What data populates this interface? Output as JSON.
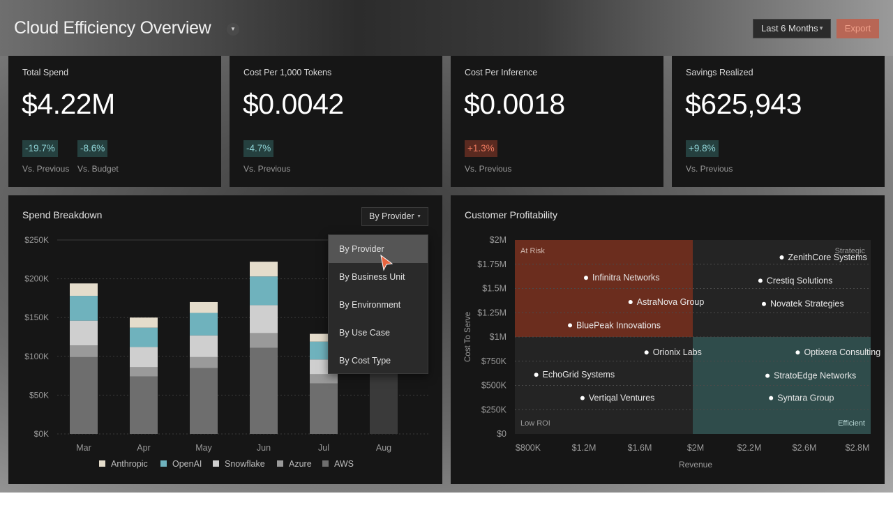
{
  "header": {
    "title": "Cloud Efficiency Overview",
    "range_label": "Last 6 Months",
    "export_label": "Export"
  },
  "kpis": [
    {
      "label": "Total Spend",
      "value": "$4.22M",
      "badges": [
        {
          "text": "-19.7%",
          "status": "good",
          "caption": "Vs. Previous"
        },
        {
          "text": "-8.6%",
          "status": "good",
          "caption": "Vs. Budget"
        }
      ]
    },
    {
      "label": "Cost Per 1,000 Tokens",
      "value": "$0.0042",
      "badges": [
        {
          "text": "-4.7%",
          "status": "good",
          "caption": "Vs. Previous"
        }
      ]
    },
    {
      "label": "Cost Per Inference",
      "value": "$0.0018",
      "badges": [
        {
          "text": "+1.3%",
          "status": "bad",
          "caption": "Vs. Previous"
        }
      ]
    },
    {
      "label": "Savings Realized",
      "value": "$625,943",
      "badges": [
        {
          "text": "+9.8%",
          "status": "good",
          "caption": "Vs. Previous"
        }
      ]
    }
  ],
  "spend": {
    "title": "Spend Breakdown",
    "selector_label": "By Provider",
    "dropdown_options": [
      "By Provider",
      "By Business Unit",
      "By Environment",
      "By Use Case",
      "By Cost Type"
    ],
    "selected_option": "By Provider"
  },
  "profit": {
    "title": "Customer Profitability"
  },
  "colors": {
    "anthropic": "#e4dccb",
    "openai": "#6fb2bd",
    "snowflake": "#cfcfcf",
    "azure": "#9a9a9a",
    "aws": "#6e6e6e",
    "at_risk": "#6b2d1e",
    "efficient": "#2f4c4b",
    "good": "#8fd3d6",
    "bad": "#ee7a5f",
    "export": "#b86655"
  },
  "chart_data": [
    {
      "type": "bar",
      "stacked": true,
      "categories": [
        "Mar",
        "Apr",
        "May",
        "Jun",
        "Jul",
        "Aug"
      ],
      "ylim": [
        0,
        250000
      ],
      "yticks": [
        "$0K",
        "$50K",
        "$100K",
        "$150K",
        "$200K",
        "$250K"
      ],
      "series": [
        {
          "name": "AWS",
          "color": "#6e6e6e",
          "values": [
            99000,
            74000,
            85000,
            111000,
            65000,
            null
          ]
        },
        {
          "name": "Azure",
          "color": "#9a9a9a",
          "values": [
            15000,
            12000,
            14000,
            19000,
            12000,
            null
          ]
        },
        {
          "name": "Snowflake",
          "color": "#cfcfcf",
          "values": [
            32000,
            26000,
            28000,
            36000,
            19000,
            null
          ]
        },
        {
          "name": "OpenAI",
          "color": "#6fb2bd",
          "values": [
            32000,
            25000,
            29000,
            37000,
            23000,
            null
          ]
        },
        {
          "name": "Anthropic",
          "color": "#e4dccb",
          "values": [
            16000,
            13000,
            14000,
            19000,
            10000,
            null
          ]
        }
      ],
      "legend": [
        "Anthropic",
        "OpenAI",
        "Snowflake",
        "Azure",
        "AWS"
      ],
      "legend_position": "bottom",
      "grid": true
    },
    {
      "type": "scatter",
      "xlabel": "Revenue",
      "ylabel": "Cost To Serve",
      "xlim": [
        800000,
        2800000
      ],
      "ylim": [
        0,
        2000000
      ],
      "xticks": [
        "$800K",
        "$1.2M",
        "$1.6M",
        "$2M",
        "$2.2M",
        "$2.6M",
        "$2.8M"
      ],
      "yticks": [
        "$0",
        "$250K",
        "$500K",
        "$750K",
        "$1M",
        "$1.25M",
        "$1.5M",
        "$1.75M",
        "$2M"
      ],
      "quadrants": [
        "At Risk",
        "Strategic",
        "Low ROI",
        "Efficient"
      ],
      "points": [
        {
          "name": "ZenithCore Systems",
          "x": 2300000,
          "y": 1820000
        },
        {
          "name": "Infinitra Networks",
          "x": 1200000,
          "y": 1610000
        },
        {
          "name": "Crestiq Solutions",
          "x": 2180000,
          "y": 1580000
        },
        {
          "name": "AstraNova Group",
          "x": 1450000,
          "y": 1360000
        },
        {
          "name": "Novatek Strategies",
          "x": 2200000,
          "y": 1340000
        },
        {
          "name": "BluePeak Innovations",
          "x": 1110000,
          "y": 1120000
        },
        {
          "name": "Orionix Labs",
          "x": 1540000,
          "y": 840000
        },
        {
          "name": "Optixera Consulting",
          "x": 2390000,
          "y": 840000
        },
        {
          "name": "EchoGrid Systems",
          "x": 920000,
          "y": 610000
        },
        {
          "name": "StratoEdge Networks",
          "x": 2220000,
          "y": 600000
        },
        {
          "name": "Vertiqal Ventures",
          "x": 1180000,
          "y": 370000
        },
        {
          "name": "Syntara Group",
          "x": 2240000,
          "y": 370000
        }
      ],
      "grid": true
    }
  ]
}
